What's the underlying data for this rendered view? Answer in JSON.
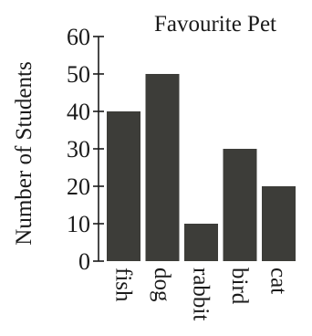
{
  "chart_data": {
    "type": "bar",
    "title": "Favourite Pet",
    "xlabel": "",
    "ylabel": "Number of Students",
    "categories": [
      "fish",
      "dog",
      "rabbit",
      "bird",
      "cat"
    ],
    "values": [
      40,
      50,
      10,
      30,
      20
    ],
    "ylim": [
      0,
      60
    ],
    "yticks": [
      "0",
      "10",
      "20",
      "30",
      "40",
      "50",
      "60"
    ],
    "bar_color": "#3d3d39",
    "grid": false
  }
}
